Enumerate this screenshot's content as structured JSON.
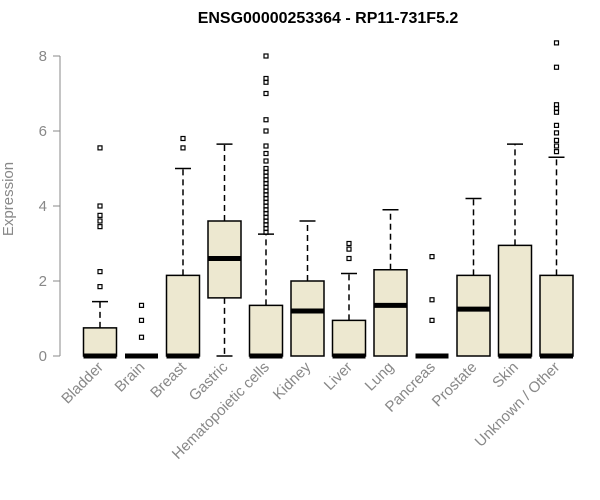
{
  "chart_data": {
    "type": "box",
    "title": "ENSG00000253364 - RP11-731F5.2",
    "ylabel": "Expression",
    "ylim": [
      0,
      8.4
    ],
    "yticks": [
      0,
      2,
      4,
      6,
      8
    ],
    "colors": {
      "box_fill": "#ede8d0",
      "stroke": "#000000",
      "axis": "#888888"
    },
    "categories": [
      "Bladder",
      "Brain",
      "Breast",
      "Gastric",
      "Hematopoietic cells",
      "Kidney",
      "Liver",
      "Lung",
      "Pancreas",
      "Prostate",
      "Skin",
      "Unknown / Other"
    ],
    "boxes": [
      {
        "category": "Bladder",
        "q1": 0,
        "median": 0,
        "q3": 0.75,
        "whisker_low": 0,
        "whisker_high": 1.45,
        "outliers": [
          5.55,
          4.0,
          3.75,
          3.6,
          3.45,
          2.25,
          1.85
        ]
      },
      {
        "category": "Brain",
        "q1": 0,
        "median": 0,
        "q3": 0,
        "whisker_low": 0,
        "whisker_high": 0,
        "outliers": [
          1.35,
          0.95,
          0.5
        ]
      },
      {
        "category": "Breast",
        "q1": 0,
        "median": 0,
        "q3": 2.15,
        "whisker_low": 0,
        "whisker_high": 5.0,
        "outliers": [
          5.8,
          5.55
        ]
      },
      {
        "category": "Gastric",
        "q1": 1.55,
        "median": 2.6,
        "q3": 3.6,
        "whisker_low": 0,
        "whisker_high": 5.65,
        "outliers": []
      },
      {
        "category": "Hematopoietic cells",
        "q1": 0,
        "median": 0,
        "q3": 1.35,
        "whisker_low": 0,
        "whisker_high": 3.25,
        "outliers": [
          3.3,
          3.4,
          3.5,
          3.6,
          3.7,
          3.8,
          3.9,
          4.0,
          4.1,
          4.2,
          4.3,
          4.4,
          4.5,
          4.6,
          4.7,
          4.8,
          4.9,
          5.0,
          5.2,
          5.4,
          5.6,
          6.0,
          6.3,
          7.0,
          7.3,
          7.4,
          8.0
        ]
      },
      {
        "category": "Kidney",
        "q1": 0,
        "median": 1.2,
        "q3": 2.0,
        "whisker_low": 0,
        "whisker_high": 3.6,
        "outliers": []
      },
      {
        "category": "Liver",
        "q1": 0,
        "median": 0,
        "q3": 0.95,
        "whisker_low": 0,
        "whisker_high": 2.2,
        "outliers": [
          3.0,
          2.85,
          2.6
        ]
      },
      {
        "category": "Lung",
        "q1": 0,
        "median": 1.35,
        "q3": 2.3,
        "whisker_low": 0,
        "whisker_high": 3.9,
        "outliers": []
      },
      {
        "category": "Pancreas",
        "q1": 0,
        "median": 0,
        "q3": 0,
        "whisker_low": 0,
        "whisker_high": 0,
        "outliers": [
          2.65,
          1.5,
          0.95
        ]
      },
      {
        "category": "Prostate",
        "q1": 0,
        "median": 1.25,
        "q3": 2.15,
        "whisker_low": 0,
        "whisker_high": 4.2,
        "outliers": []
      },
      {
        "category": "Skin",
        "q1": 0,
        "median": 0,
        "q3": 2.95,
        "whisker_low": 0,
        "whisker_high": 5.65,
        "outliers": []
      },
      {
        "category": "Unknown / Other",
        "q1": 0,
        "median": 0,
        "q3": 2.15,
        "whisker_low": 0,
        "whisker_high": 5.3,
        "outliers": [
          8.35,
          7.7,
          6.7,
          6.6,
          6.5,
          6.15,
          5.95,
          5.75,
          5.6,
          5.45
        ]
      }
    ]
  }
}
